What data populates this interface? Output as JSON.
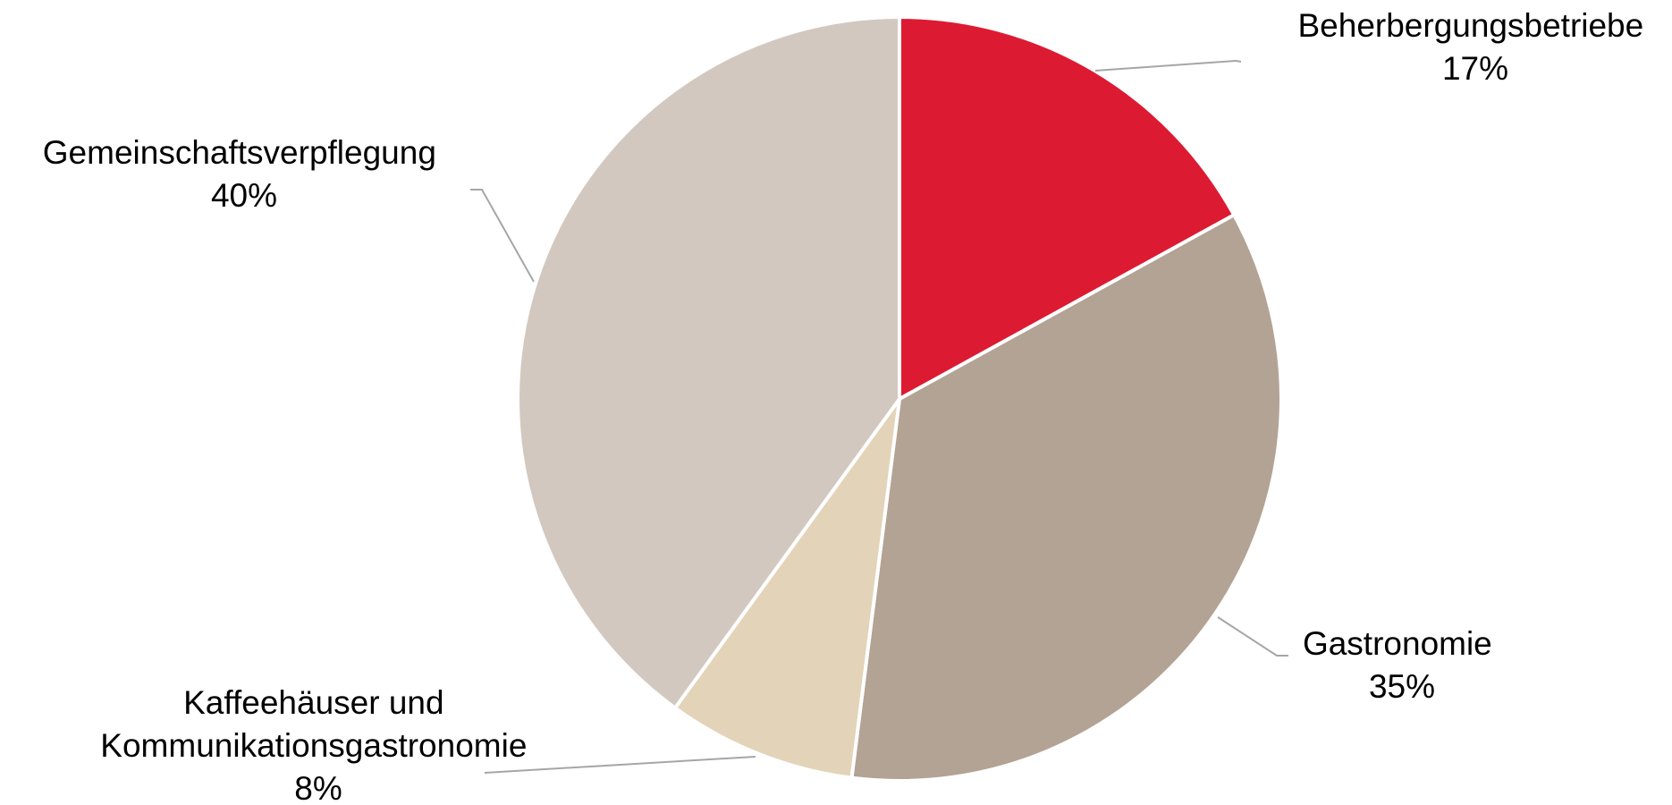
{
  "chart_data": {
    "type": "pie",
    "title": "",
    "unit": "%",
    "slices": [
      {
        "name": "Beherbergungsbetriebe",
        "value": 17,
        "value_label": "17%",
        "color": "#dc1b32"
      },
      {
        "name": "Gastronomie",
        "value": 35,
        "value_label": "35%",
        "color": "#b3a394"
      },
      {
        "name": "Kaffeehäuser und Kommunikationsgastronomie",
        "name_lines": [
          "Kaffeehäuser und",
          "Kommunikationsgastronomie"
        ],
        "value": 8,
        "value_label": "8%",
        "color": "#e3d3b9"
      },
      {
        "name": "Gemeinschaftsverpflegung",
        "value": 40,
        "value_label": "40%",
        "color": "#d2c8bf"
      }
    ],
    "start_angle": "12 o'clock",
    "direction": "clockwise",
    "legend": "none",
    "labels": "outside with leader lines"
  }
}
